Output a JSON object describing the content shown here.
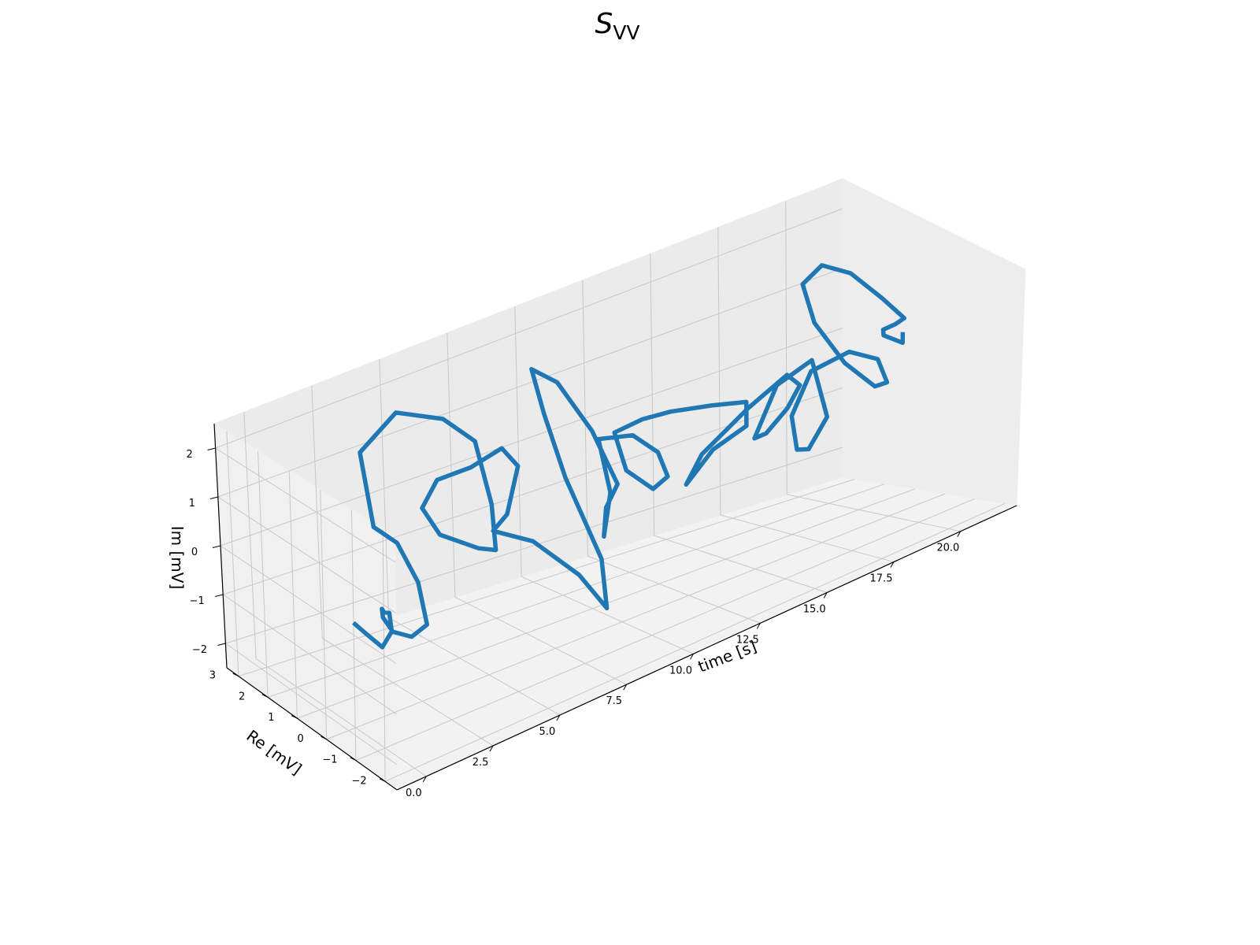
{
  "chart_data": {
    "type": "line",
    "title": {
      "main": "S",
      "subscript": "VV"
    },
    "xlabel": "time [s]",
    "ylabel": "Re [mV]",
    "zlabel": "Im [mV]",
    "grid": true,
    "projection": "3d",
    "xlim": [
      -1.1,
      22.1
    ],
    "ylim": [
      -2.4,
      3.4
    ],
    "zlim": [
      -2.5,
      2.5
    ],
    "x_ticks": [
      0,
      2.5,
      5,
      7.5,
      10,
      12.5,
      15,
      17.5,
      20
    ],
    "x_tick_labels": [
      "0.0",
      "2.5",
      "5.0",
      "7.5",
      "10.0",
      "12.5",
      "15.0",
      "17.5",
      "20.0"
    ],
    "y_ticks": [
      -2,
      -1,
      0,
      1,
      2,
      3
    ],
    "y_tick_labels": [
      "−2",
      "−1",
      "0",
      "1",
      "2",
      "3"
    ],
    "z_ticks": [
      -2,
      -1,
      0,
      1,
      2
    ],
    "z_tick_labels": [
      "−2",
      "−1",
      "0",
      "1",
      "2"
    ],
    "series": [
      {
        "color": "#1f77b4",
        "points": [
          [
            0.0,
            0.0,
            -0.4
          ],
          [
            0.25,
            -0.2,
            -0.6
          ],
          [
            0.5,
            -0.5,
            -0.8
          ],
          [
            0.75,
            -0.6,
            -0.5
          ],
          [
            1.0,
            -0.3,
            -0.3
          ],
          [
            1.25,
            0.1,
            -0.5
          ],
          [
            1.5,
            0.4,
            -0.6
          ],
          [
            1.75,
            0.6,
            -0.9
          ],
          [
            2.0,
            0.5,
            -1.2
          ],
          [
            2.25,
            0.1,
            -1.2
          ],
          [
            2.5,
            -0.2,
            -0.9
          ],
          [
            2.75,
            0.3,
            -0.3
          ],
          [
            3.0,
            1.2,
            0.1
          ],
          [
            3.25,
            2.2,
            0.0
          ],
          [
            3.5,
            2.8,
            1.2
          ],
          [
            3.75,
            1.8,
            2.3
          ],
          [
            4.0,
            0.5,
            2.6
          ],
          [
            4.25,
            -0.3,
            2.4
          ],
          [
            4.5,
            -0.6,
            1.2
          ],
          [
            4.75,
            -0.5,
            0.2
          ],
          [
            5.0,
            0.3,
            -0.1
          ],
          [
            5.25,
            1.8,
            -0.4
          ],
          [
            5.5,
            2.6,
            -0.2
          ],
          [
            5.75,
            2.3,
            0.4
          ],
          [
            6.0,
            1.4,
            0.9
          ],
          [
            6.25,
            0.6,
            1.5
          ],
          [
            6.5,
            0.3,
            1.2
          ],
          [
            6.75,
            0.9,
            0.0
          ],
          [
            7.0,
            1.6,
            -0.6
          ],
          [
            7.25,
            0.5,
            -0.5
          ],
          [
            7.5,
            -0.8,
            -0.8
          ],
          [
            7.75,
            -1.5,
            -1.3
          ],
          [
            8.0,
            -1.1,
            -0.5
          ],
          [
            8.25,
            0.3,
            0.6
          ],
          [
            8.5,
            1.2,
            1.5
          ],
          [
            8.75,
            1.8,
            2.1
          ],
          [
            9.0,
            1.2,
            2.0
          ],
          [
            9.25,
            0.3,
            1.3
          ],
          [
            9.5,
            -0.3,
            0.4
          ],
          [
            9.75,
            0.3,
            -0.3
          ],
          [
            10.0,
            0.6,
            -1.0
          ],
          [
            10.25,
            0.6,
            -0.2
          ],
          [
            10.5,
            1.2,
            0.6
          ],
          [
            10.75,
            0.3,
            0.9
          ],
          [
            11.0,
            -0.3,
            0.7
          ],
          [
            11.25,
            -0.4,
            0.2
          ],
          [
            11.5,
            0.3,
            -0.3
          ],
          [
            11.75,
            1.4,
            -0.3
          ],
          [
            12.0,
            2.0,
            0.2
          ],
          [
            12.25,
            1.3,
            0.6
          ],
          [
            12.5,
            0.6,
            0.9
          ],
          [
            12.75,
            -0.5,
            1.3
          ],
          [
            13.0,
            -1.4,
            1.6
          ],
          [
            13.25,
            -1.2,
            1.0
          ],
          [
            13.5,
            0.1,
            0.1
          ],
          [
            13.75,
            1.2,
            -0.9
          ],
          [
            14.0,
            0.9,
            -0.3
          ],
          [
            14.25,
            -0.4,
            0.9
          ],
          [
            14.5,
            -1.4,
            1.8
          ],
          [
            14.75,
            -1.6,
            1.6
          ],
          [
            15.0,
            -1.0,
            0.9
          ],
          [
            15.25,
            -0.1,
            0.1
          ],
          [
            15.5,
            0.5,
            -0.2
          ],
          [
            15.75,
            0.0,
            0.9
          ],
          [
            16.0,
            -0.9,
            1.6
          ],
          [
            16.25,
            -1.2,
            0.5
          ],
          [
            16.5,
            -0.4,
            -0.4
          ],
          [
            16.75,
            0.2,
            -0.6
          ],
          [
            17.0,
            0.6,
            -0.1
          ],
          [
            17.25,
            0.2,
            0.8
          ],
          [
            17.5,
            -0.8,
            1.4
          ],
          [
            17.75,
            -1.5,
            1.4
          ],
          [
            18.0,
            -1.6,
            0.9
          ],
          [
            18.25,
            -1.0,
            0.6
          ],
          [
            18.5,
            0.2,
            0.7
          ],
          [
            18.75,
            1.4,
            1.1
          ],
          [
            19.0,
            2.0,
            1.6
          ],
          [
            19.25,
            1.6,
            2.0
          ],
          [
            19.5,
            0.9,
            2.0
          ],
          [
            19.75,
            0.1,
            1.7
          ],
          [
            20.0,
            -0.4,
            1.4
          ],
          [
            20.25,
            0.1,
            1.1
          ],
          [
            20.5,
            0.7,
            0.8
          ],
          [
            20.75,
            0.9,
            0.6
          ],
          [
            21.0,
            0.5,
            0.5
          ],
          [
            21.0,
            0.5,
            0.7
          ]
        ]
      }
    ]
  }
}
